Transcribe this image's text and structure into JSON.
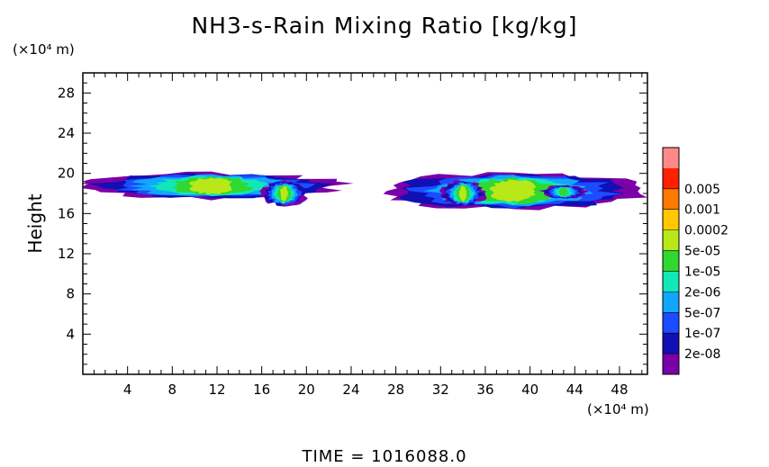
{
  "title": "NH3-s-Rain Mixing Ratio [kg/kg]",
  "footer": "TIME = 1016088.0",
  "chart_data": {
    "type": "heatmap",
    "title": "NH3-s-Rain Mixing Ratio [kg/kg]",
    "xlabel": "",
    "xunit": "(×10⁴ m)",
    "ylabel": "Height",
    "yunit": "(×10⁴ m)",
    "xlim": [
      0,
      50.5
    ],
    "ylim": [
      0,
      30
    ],
    "xticks": [
      4,
      8,
      12,
      16,
      20,
      24,
      28,
      32,
      36,
      40,
      44,
      48
    ],
    "yticks": [
      4,
      8,
      12,
      16,
      20,
      24,
      28
    ],
    "colorbar": {
      "levels": [
        "2e-08",
        "1e-07",
        "5e-07",
        "2e-06",
        "1e-05",
        "5e-05",
        "0.0002",
        "0.001",
        "0.005"
      ],
      "colors": [
        "#7a00a8",
        "#1010b4",
        "#1c4cff",
        "#10a8ff",
        "#10e8b8",
        "#30d830",
        "#b8e818",
        "#ffc800",
        "#ff7800",
        "#ff2000",
        "#ff8888"
      ]
    },
    "regions": [
      {
        "x": [
          0,
          23
        ],
        "y": [
          17.5,
          20
        ],
        "max_level": "5e-05"
      },
      {
        "x": [
          26.5,
          50.5
        ],
        "y": [
          16.5,
          20
        ],
        "max_level": "5e-05"
      },
      {
        "x": [
          32,
          36
        ],
        "y": [
          16.8,
          19.2
        ],
        "max_level": "5e-05"
      },
      {
        "x": [
          16,
          20
        ],
        "y": [
          16.8,
          19.2
        ],
        "max_level": "5e-05"
      },
      {
        "x": [
          41,
          45
        ],
        "y": [
          17.5,
          18.8
        ],
        "max_level": "1e-05"
      }
    ]
  }
}
